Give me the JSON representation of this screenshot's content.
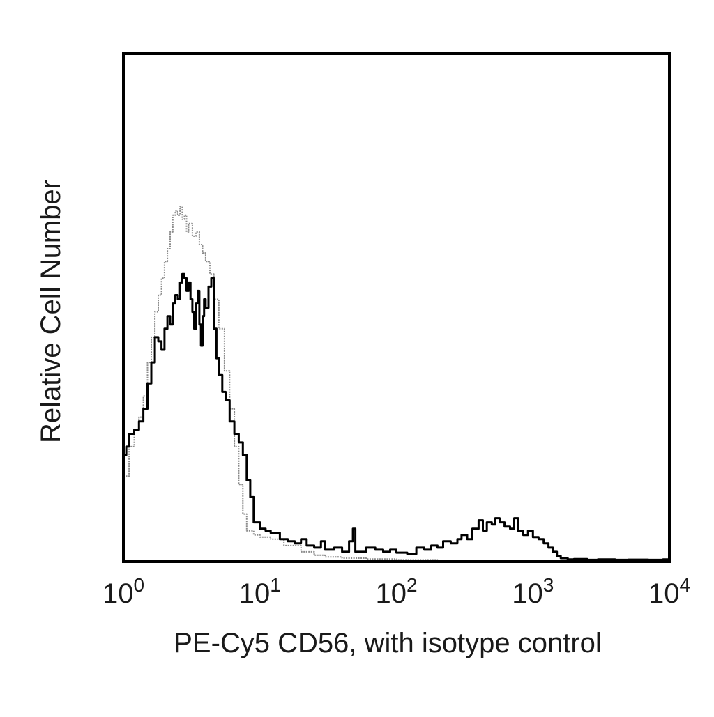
{
  "chart_data": {
    "type": "histogram",
    "x_scale": "log",
    "x_range": [
      1,
      10000
    ],
    "y_range": [
      0,
      1
    ],
    "grid": false,
    "xlabel": "PE-Cy5 CD56, with isotype control",
    "ylabel": "Relative Cell Number",
    "x_ticks": [
      {
        "value": 1,
        "base": "10",
        "exp": "0"
      },
      {
        "value": 10,
        "base": "10",
        "exp": "1"
      },
      {
        "value": 100,
        "base": "10",
        "exp": "2"
      },
      {
        "value": 1000,
        "base": "10",
        "exp": "3"
      },
      {
        "value": 10000,
        "base": "10",
        "exp": "4"
      }
    ],
    "series": [
      {
        "role": "isotype-control",
        "color": "#8a8a8a",
        "style": "dotted",
        "points": [
          [
            1.0,
            0.2
          ],
          [
            1.1,
            0.27
          ],
          [
            1.2,
            0.31
          ],
          [
            1.3,
            0.34
          ],
          [
            1.4,
            0.39
          ],
          [
            1.5,
            0.47
          ],
          [
            1.6,
            0.53
          ],
          [
            1.7,
            0.59
          ],
          [
            1.8,
            0.63
          ],
          [
            1.9,
            0.67
          ],
          [
            2.0,
            0.71
          ],
          [
            2.1,
            0.74
          ],
          [
            2.2,
            0.78
          ],
          [
            2.3,
            0.82
          ],
          [
            2.4,
            0.83
          ],
          [
            2.5,
            0.82
          ],
          [
            2.6,
            0.84
          ],
          [
            2.7,
            0.81
          ],
          [
            2.8,
            0.82
          ],
          [
            2.9,
            0.78
          ],
          [
            3.0,
            0.8
          ],
          [
            3.2,
            0.77
          ],
          [
            3.4,
            0.78
          ],
          [
            3.6,
            0.75
          ],
          [
            3.8,
            0.73
          ],
          [
            4.0,
            0.71
          ],
          [
            4.3,
            0.68
          ],
          [
            4.6,
            0.62
          ],
          [
            5.0,
            0.55
          ],
          [
            5.5,
            0.45
          ],
          [
            6.0,
            0.36
          ],
          [
            6.5,
            0.27
          ],
          [
            7.0,
            0.18
          ],
          [
            7.5,
            0.11
          ],
          [
            8.0,
            0.07
          ],
          [
            9.0,
            0.06
          ],
          [
            10,
            0.055
          ],
          [
            12,
            0.05
          ],
          [
            15,
            0.035
          ],
          [
            20,
            0.02
          ],
          [
            25,
            0.012
          ],
          [
            30,
            0.008
          ],
          [
            40,
            0.005
          ],
          [
            60,
            0.003
          ],
          [
            100,
            0.001
          ],
          [
            200,
            0.0
          ]
        ]
      },
      {
        "role": "CD56-stained",
        "color": "#000000",
        "style": "solid",
        "points": [
          [
            1.0,
            0.25
          ],
          [
            1.05,
            0.27
          ],
          [
            1.1,
            0.3
          ],
          [
            1.2,
            0.31
          ],
          [
            1.3,
            0.33
          ],
          [
            1.4,
            0.36
          ],
          [
            1.5,
            0.42
          ],
          [
            1.6,
            0.47
          ],
          [
            1.7,
            0.53
          ],
          [
            1.8,
            0.52
          ],
          [
            1.9,
            0.5
          ],
          [
            2.0,
            0.55
          ],
          [
            2.1,
            0.58
          ],
          [
            2.2,
            0.56
          ],
          [
            2.3,
            0.61
          ],
          [
            2.4,
            0.63
          ],
          [
            2.5,
            0.62
          ],
          [
            2.6,
            0.66
          ],
          [
            2.7,
            0.68
          ],
          [
            2.8,
            0.67
          ],
          [
            2.9,
            0.64
          ],
          [
            3.0,
            0.66
          ],
          [
            3.1,
            0.62
          ],
          [
            3.2,
            0.59
          ],
          [
            3.3,
            0.55
          ],
          [
            3.4,
            0.61
          ],
          [
            3.5,
            0.64
          ],
          [
            3.6,
            0.56
          ],
          [
            3.7,
            0.51
          ],
          [
            3.8,
            0.58
          ],
          [
            3.9,
            0.62
          ],
          [
            4.0,
            0.6
          ],
          [
            4.2,
            0.65
          ],
          [
            4.4,
            0.67
          ],
          [
            4.6,
            0.55
          ],
          [
            4.8,
            0.48
          ],
          [
            5.0,
            0.44
          ],
          [
            5.3,
            0.4
          ],
          [
            5.6,
            0.38
          ],
          [
            6.0,
            0.33
          ],
          [
            6.5,
            0.3
          ],
          [
            7.0,
            0.28
          ],
          [
            7.5,
            0.25
          ],
          [
            8.0,
            0.19
          ],
          [
            8.5,
            0.15
          ],
          [
            9.0,
            0.09
          ],
          [
            10,
            0.075
          ],
          [
            11,
            0.07
          ],
          [
            12,
            0.065
          ],
          [
            14,
            0.05
          ],
          [
            16,
            0.045
          ],
          [
            18,
            0.04
          ],
          [
            20,
            0.05
          ],
          [
            22,
            0.035
          ],
          [
            25,
            0.03
          ],
          [
            28,
            0.045
          ],
          [
            30,
            0.025
          ],
          [
            35,
            0.03
          ],
          [
            40,
            0.02
          ],
          [
            45,
            0.045
          ],
          [
            48,
            0.075
          ],
          [
            50,
            0.02
          ],
          [
            55,
            0.02
          ],
          [
            60,
            0.03
          ],
          [
            70,
            0.025
          ],
          [
            80,
            0.02
          ],
          [
            90,
            0.025
          ],
          [
            100,
            0.018
          ],
          [
            120,
            0.015
          ],
          [
            140,
            0.03
          ],
          [
            160,
            0.025
          ],
          [
            180,
            0.035
          ],
          [
            200,
            0.03
          ],
          [
            220,
            0.045
          ],
          [
            250,
            0.04
          ],
          [
            280,
            0.05
          ],
          [
            300,
            0.06
          ],
          [
            330,
            0.05
          ],
          [
            360,
            0.075
          ],
          [
            400,
            0.095
          ],
          [
            430,
            0.07
          ],
          [
            460,
            0.09
          ],
          [
            500,
            0.085
          ],
          [
            530,
            0.1
          ],
          [
            570,
            0.09
          ],
          [
            620,
            0.08
          ],
          [
            680,
            0.075
          ],
          [
            730,
            0.1
          ],
          [
            780,
            0.07
          ],
          [
            850,
            0.06
          ],
          [
            920,
            0.07
          ],
          [
            1000,
            0.055
          ],
          [
            1100,
            0.05
          ],
          [
            1200,
            0.04
          ],
          [
            1300,
            0.03
          ],
          [
            1400,
            0.02
          ],
          [
            1500,
            0.01
          ],
          [
            1600,
            0.005
          ],
          [
            1800,
            0.002
          ],
          [
            2000,
            0.003
          ],
          [
            2500,
            0.001
          ],
          [
            3000,
            0.002
          ],
          [
            4000,
            0.001
          ],
          [
            5000,
            0.0015
          ],
          [
            7000,
            0.001
          ],
          [
            9000,
            0.002
          ],
          [
            10000,
            0.001
          ]
        ]
      }
    ]
  }
}
